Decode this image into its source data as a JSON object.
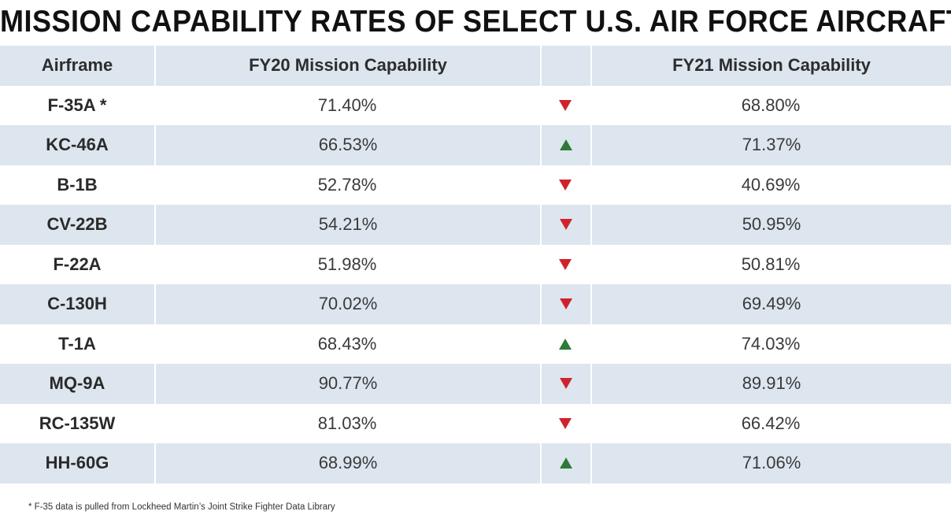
{
  "title": "MISSION CAPABILITY RATES OF SELECT U.S. AIR FORCE AIRCRAFT",
  "colors": {
    "header_bg": "#dde6ef",
    "stripe_bg": "#dde6ef",
    "down": "#d0222d",
    "up": "#2f7a3a"
  },
  "headers": {
    "airframe": "Airframe",
    "fy20": "FY20 Mission Capability",
    "fy21": "FY21 Mission Capability"
  },
  "footnote": "* F-35 data is pulled from Lockheed Martin’s Joint Strike Fighter Data Library",
  "chart_data": {
    "type": "table",
    "title": "MISSION CAPABILITY RATES OF SELECT U.S. AIR FORCE AIRCRAFT",
    "columns": [
      "Airframe",
      "FY20 Mission Capability",
      "FY21 Mission Capability"
    ],
    "rows": [
      {
        "airframe": "F-35A *",
        "fy20": "71.40%",
        "trend": "down",
        "fy21": "68.80%"
      },
      {
        "airframe": "KC-46A",
        "fy20": "66.53%",
        "trend": "up",
        "fy21": "71.37%"
      },
      {
        "airframe": "B-1B",
        "fy20": "52.78%",
        "trend": "down",
        "fy21": "40.69%"
      },
      {
        "airframe": "CV-22B",
        "fy20": "54.21%",
        "trend": "down",
        "fy21": "50.95%"
      },
      {
        "airframe": "F-22A",
        "fy20": "51.98%",
        "trend": "down",
        "fy21": "50.81%"
      },
      {
        "airframe": "C-130H",
        "fy20": "70.02%",
        "trend": "down",
        "fy21": "69.49%"
      },
      {
        "airframe": "T-1A",
        "fy20": "68.43%",
        "trend": "up",
        "fy21": "74.03%"
      },
      {
        "airframe": "MQ-9A",
        "fy20": "90.77%",
        "trend": "down",
        "fy21": "89.91%"
      },
      {
        "airframe": "RC-135W",
        "fy20": "81.03%",
        "trend": "down",
        "fy21": "66.42%"
      },
      {
        "airframe": "HH-60G",
        "fy20": "68.99%",
        "trend": "up",
        "fy21": "71.06%"
      }
    ]
  }
}
